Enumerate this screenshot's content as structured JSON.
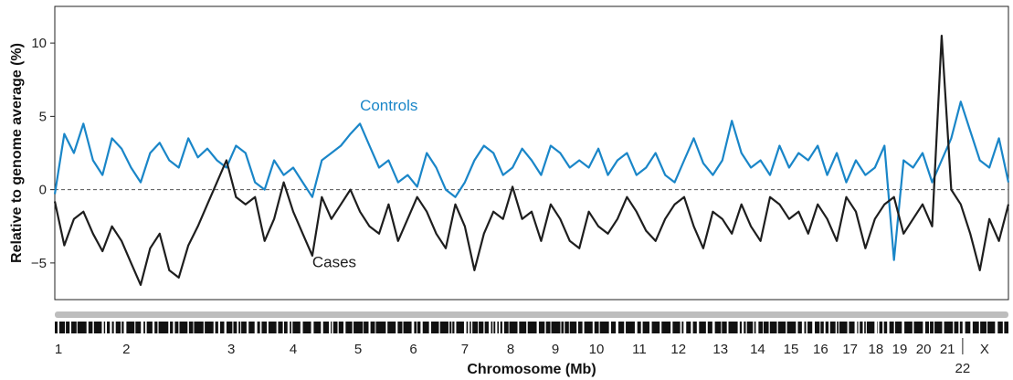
{
  "chart_data": {
    "type": "line",
    "title": "",
    "xlabel": "Chromosome (Mb)",
    "ylabel": "Relative to genome average (%)",
    "ylim": [
      -7.5,
      12.5
    ],
    "xlim": [
      0,
      1.0
    ],
    "yticks": [
      -5,
      0,
      5,
      10
    ],
    "ytick_labels": [
      "−5",
      "0",
      "5",
      "10"
    ],
    "zero_line": "dashed",
    "grid": false,
    "series": [
      {
        "name": "Controls",
        "color": "#1a86c8",
        "label_position": [
          0.32,
          5.4
        ],
        "x": [
          0.0,
          0.01,
          0.02,
          0.03,
          0.04,
          0.05,
          0.06,
          0.07,
          0.08,
          0.09,
          0.1,
          0.11,
          0.12,
          0.13,
          0.14,
          0.15,
          0.16,
          0.17,
          0.18,
          0.19,
          0.2,
          0.21,
          0.22,
          0.23,
          0.24,
          0.25,
          0.26,
          0.27,
          0.28,
          0.29,
          0.3,
          0.31,
          0.32,
          0.33,
          0.34,
          0.35,
          0.36,
          0.37,
          0.38,
          0.39,
          0.4,
          0.41,
          0.42,
          0.43,
          0.44,
          0.45,
          0.46,
          0.47,
          0.48,
          0.49,
          0.5,
          0.51,
          0.52,
          0.53,
          0.54,
          0.55,
          0.56,
          0.57,
          0.58,
          0.59,
          0.6,
          0.61,
          0.62,
          0.63,
          0.64,
          0.65,
          0.66,
          0.67,
          0.68,
          0.69,
          0.7,
          0.71,
          0.72,
          0.73,
          0.74,
          0.75,
          0.76,
          0.77,
          0.78,
          0.79,
          0.8,
          0.81,
          0.82,
          0.83,
          0.84,
          0.85,
          0.86,
          0.87,
          0.88,
          0.89,
          0.9,
          0.91,
          0.92,
          0.93,
          0.94,
          0.95,
          0.96,
          0.97,
          0.98,
          0.99,
          1.0
        ],
        "values": [
          -0.3,
          3.8,
          2.5,
          4.5,
          2.0,
          1.0,
          3.5,
          2.8,
          1.5,
          0.5,
          2.5,
          3.2,
          2.0,
          1.5,
          3.5,
          2.2,
          2.8,
          2.0,
          1.5,
          3.0,
          2.5,
          0.5,
          0.0,
          2.0,
          1.0,
          1.5,
          0.5,
          -0.5,
          2.0,
          2.5,
          3.0,
          3.8,
          4.5,
          3.0,
          1.5,
          2.0,
          0.5,
          1.0,
          0.2,
          2.5,
          1.5,
          0.0,
          -0.5,
          0.5,
          2.0,
          3.0,
          2.5,
          1.0,
          1.5,
          2.8,
          2.0,
          1.0,
          3.0,
          2.5,
          1.5,
          2.0,
          1.5,
          2.8,
          1.0,
          2.0,
          2.5,
          1.0,
          1.5,
          2.5,
          1.0,
          0.5,
          2.0,
          3.5,
          1.8,
          1.0,
          2.0,
          4.7,
          2.5,
          1.5,
          2.0,
          1.0,
          3.0,
          1.5,
          2.5,
          2.0,
          3.0,
          1.0,
          2.5,
          0.5,
          2.0,
          1.0,
          1.5,
          3.0,
          -4.8,
          2.0,
          1.5,
          2.5,
          0.5,
          2.0,
          3.5,
          6.0,
          4.0,
          2.0,
          1.5,
          3.5,
          0.5
        ]
      },
      {
        "name": "Cases",
        "color": "#1e1e1e",
        "label_position": [
          0.27,
          -5.3
        ],
        "x": [
          0.0,
          0.01,
          0.02,
          0.03,
          0.04,
          0.05,
          0.06,
          0.07,
          0.08,
          0.09,
          0.1,
          0.11,
          0.12,
          0.13,
          0.14,
          0.15,
          0.16,
          0.17,
          0.18,
          0.19,
          0.2,
          0.21,
          0.22,
          0.23,
          0.24,
          0.25,
          0.26,
          0.27,
          0.28,
          0.29,
          0.3,
          0.31,
          0.32,
          0.33,
          0.34,
          0.35,
          0.36,
          0.37,
          0.38,
          0.39,
          0.4,
          0.41,
          0.42,
          0.43,
          0.44,
          0.45,
          0.46,
          0.47,
          0.48,
          0.49,
          0.5,
          0.51,
          0.52,
          0.53,
          0.54,
          0.55,
          0.56,
          0.57,
          0.58,
          0.59,
          0.6,
          0.61,
          0.62,
          0.63,
          0.64,
          0.65,
          0.66,
          0.67,
          0.68,
          0.69,
          0.7,
          0.71,
          0.72,
          0.73,
          0.74,
          0.75,
          0.76,
          0.77,
          0.78,
          0.79,
          0.8,
          0.81,
          0.82,
          0.83,
          0.84,
          0.85,
          0.86,
          0.87,
          0.88,
          0.89,
          0.9,
          0.91,
          0.92,
          0.93,
          0.94,
          0.95,
          0.96,
          0.97,
          0.98,
          0.99,
          1.0
        ],
        "values": [
          -0.8,
          -3.8,
          -2.0,
          -1.5,
          -3.0,
          -4.2,
          -2.5,
          -3.5,
          -5.0,
          -6.5,
          -4.0,
          -3.0,
          -5.5,
          -6.0,
          -3.8,
          -2.5,
          -1.0,
          0.5,
          2.0,
          -0.5,
          -1.0,
          -0.5,
          -3.5,
          -2.0,
          0.5,
          -1.5,
          -3.0,
          -4.5,
          -0.5,
          -2.0,
          -1.0,
          0.0,
          -1.5,
          -2.5,
          -3.0,
          -1.0,
          -3.5,
          -2.0,
          -0.5,
          -1.5,
          -3.0,
          -4.0,
          -1.0,
          -2.5,
          -5.5,
          -3.0,
          -1.5,
          -2.0,
          0.2,
          -2.0,
          -1.5,
          -3.5,
          -1.0,
          -2.0,
          -3.5,
          -4.0,
          -1.5,
          -2.5,
          -3.0,
          -2.0,
          -0.5,
          -1.5,
          -2.8,
          -3.5,
          -2.0,
          -1.0,
          -0.5,
          -2.5,
          -4.0,
          -1.5,
          -2.0,
          -3.0,
          -1.0,
          -2.5,
          -3.5,
          -0.5,
          -1.0,
          -2.0,
          -1.5,
          -3.0,
          -1.0,
          -2.0,
          -3.5,
          -0.5,
          -1.5,
          -4.0,
          -2.0,
          -1.0,
          -0.5,
          -3.0,
          -2.0,
          -1.0,
          -2.5,
          10.5,
          0.0,
          -1.0,
          -3.0,
          -5.5,
          -2.0,
          -3.5,
          -1.0
        ]
      }
    ],
    "chromosomes": [
      {
        "label": "1",
        "x": 0.0
      },
      {
        "label": "2",
        "x": 0.075
      },
      {
        "label": "3",
        "x": 0.185
      },
      {
        "label": "4",
        "x": 0.25
      },
      {
        "label": "5",
        "x": 0.318
      },
      {
        "label": "6",
        "x": 0.376
      },
      {
        "label": "7",
        "x": 0.43
      },
      {
        "label": "8",
        "x": 0.478
      },
      {
        "label": "9",
        "x": 0.525
      },
      {
        "label": "10",
        "x": 0.568
      },
      {
        "label": "11",
        "x": 0.613
      },
      {
        "label": "12",
        "x": 0.654
      },
      {
        "label": "13",
        "x": 0.698
      },
      {
        "label": "14",
        "x": 0.737
      },
      {
        "label": "15",
        "x": 0.772
      },
      {
        "label": "16",
        "x": 0.803
      },
      {
        "label": "17",
        "x": 0.834
      },
      {
        "label": "18",
        "x": 0.861
      },
      {
        "label": "19",
        "x": 0.886
      },
      {
        "label": "20",
        "x": 0.911
      },
      {
        "label": "21",
        "x": 0.936
      },
      {
        "label": "22",
        "x": 0.952,
        "below": true
      },
      {
        "label": "X",
        "x": 0.975
      }
    ]
  }
}
